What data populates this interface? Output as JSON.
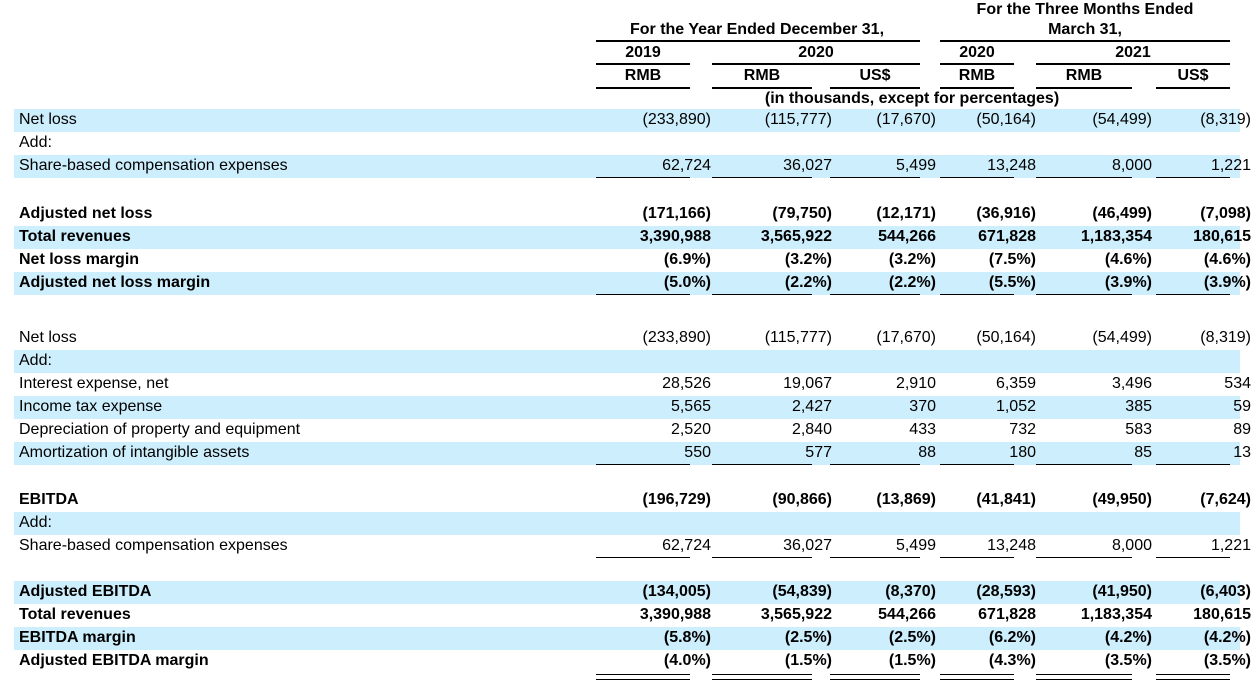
{
  "header": {
    "year_group": "For the Year Ended December 31,",
    "quarter_group_line1": "For the Three Months Ended",
    "quarter_group_line2": "March 31,",
    "year_2019": "2019",
    "year_2020": "2020",
    "q_2020": "2020",
    "q_2021": "2021",
    "currencies": [
      "RMB",
      "RMB",
      "US$",
      "RMB",
      "RMB",
      "US$"
    ],
    "units_note": "(in thousands, except for percentages)"
  },
  "rows": [
    {
      "label": "Net loss",
      "values": [
        "(233,890)",
        "(115,777)",
        "(17,670)",
        "(50,164)",
        "(54,499)",
        "(8,319)"
      ]
    },
    {
      "label": "Add:",
      "values": []
    },
    {
      "label": "Share-based compensation expenses",
      "values": [
        "62,724",
        "36,027",
        "5,499",
        "13,248",
        "8,000",
        "1,221"
      ]
    },
    {
      "label": "Adjusted net loss",
      "values": [
        "(171,166)",
        "(79,750)",
        "(12,171)",
        "(36,916)",
        "(46,499)",
        "(7,098)"
      ]
    },
    {
      "label": "Total revenues",
      "values": [
        "3,390,988",
        "3,565,922",
        "544,266",
        "671,828",
        "1,183,354",
        "180,615"
      ]
    },
    {
      "label": "Net loss margin",
      "values": [
        "(6.9%)",
        "(3.2%)",
        "(3.2%)",
        "(7.5%)",
        "(4.6%)",
        "(4.6%)"
      ]
    },
    {
      "label": "Adjusted net loss margin",
      "values": [
        "(5.0%)",
        "(2.2%)",
        "(2.2%)",
        "(5.5%)",
        "(3.9%)",
        "(3.9%)"
      ]
    },
    {
      "label": "Net loss",
      "values": [
        "(233,890)",
        "(115,777)",
        "(17,670)",
        "(50,164)",
        "(54,499)",
        "(8,319)"
      ]
    },
    {
      "label": "Add:",
      "values": []
    },
    {
      "label": "Interest expense, net",
      "values": [
        "28,526",
        "19,067",
        "2,910",
        "6,359",
        "3,496",
        "534"
      ]
    },
    {
      "label": "Income tax expense",
      "values": [
        "5,565",
        "2,427",
        "370",
        "1,052",
        "385",
        "59"
      ]
    },
    {
      "label": "Depreciation of property and equipment",
      "values": [
        "2,520",
        "2,840",
        "433",
        "732",
        "583",
        "89"
      ]
    },
    {
      "label": "Amortization of intangible assets",
      "values": [
        "550",
        "577",
        "88",
        "180",
        "85",
        "13"
      ]
    },
    {
      "label": "EBITDA",
      "values": [
        "(196,729)",
        "(90,866)",
        "(13,869)",
        "(41,841)",
        "(49,950)",
        "(7,624)"
      ]
    },
    {
      "label": "Add:",
      "values": []
    },
    {
      "label": "Share-based compensation expenses",
      "values": [
        "62,724",
        "36,027",
        "5,499",
        "13,248",
        "8,000",
        "1,221"
      ]
    },
    {
      "label": "Adjusted EBITDA",
      "values": [
        "(134,005)",
        "(54,839)",
        "(8,370)",
        "(28,593)",
        "(41,950)",
        "(6,403)"
      ]
    },
    {
      "label": "Total revenues",
      "values": [
        "3,390,988",
        "3,565,922",
        "544,266",
        "671,828",
        "1,183,354",
        "180,615"
      ]
    },
    {
      "label": "EBITDA margin",
      "values": [
        "(5.8%)",
        "(2.5%)",
        "(2.5%)",
        "(6.2%)",
        "(4.2%)",
        "(4.2%)"
      ]
    },
    {
      "label": "Adjusted EBITDA margin",
      "values": [
        "(4.0%)",
        "(1.5%)",
        "(1.5%)",
        "(4.3%)",
        "(3.5%)",
        "(3.5%)"
      ]
    }
  ],
  "colors": {
    "row_shade": "#cdeefc",
    "text": "#000000"
  }
}
